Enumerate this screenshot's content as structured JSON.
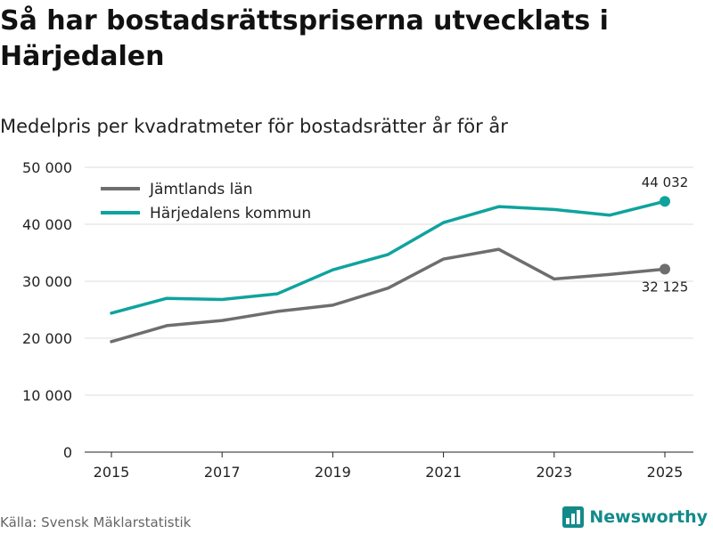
{
  "title": "Så har bostadsrättspriserna utvecklats i Härjedalen",
  "subtitle": "Medelpris per kvadratmeter för bostadsrätter år för år",
  "source": "Källa: Svensk Mäklarstatistik",
  "brand": "Newsworthy",
  "colors": {
    "grey": "#6e6e70",
    "teal": "#0fa39e",
    "grid": "#dddddd",
    "brand": "#138a8a"
  },
  "chart_data": {
    "type": "line",
    "x": [
      2015,
      2016,
      2017,
      2018,
      2019,
      2020,
      2021,
      2022,
      2023,
      2024,
      2025
    ],
    "x_ticks": [
      2015,
      2017,
      2019,
      2021,
      2023,
      2025
    ],
    "x_tick_labels": [
      "2015",
      "2017",
      "2019",
      "2021",
      "2023",
      "2025"
    ],
    "ylim": [
      0,
      50000
    ],
    "y_ticks": [
      0,
      10000,
      20000,
      30000,
      40000,
      50000
    ],
    "y_tick_labels": [
      "0",
      "10 000",
      "20 000",
      "30 000",
      "40 000",
      "50 000"
    ],
    "series": [
      {
        "name": "Jämtlands län",
        "color": "#6e6e70",
        "values": [
          19400,
          22200,
          23100,
          24700,
          25800,
          28800,
          33900,
          35600,
          30400,
          31200,
          32125
        ]
      },
      {
        "name": "Härjedalens kommun",
        "color": "#0fa39e",
        "values": [
          24400,
          27000,
          26800,
          27800,
          32000,
          34700,
          40300,
          43100,
          42600,
          41600,
          44032
        ]
      }
    ],
    "end_labels": [
      "32 125",
      "44 032"
    ],
    "legend_position": "top-left"
  }
}
